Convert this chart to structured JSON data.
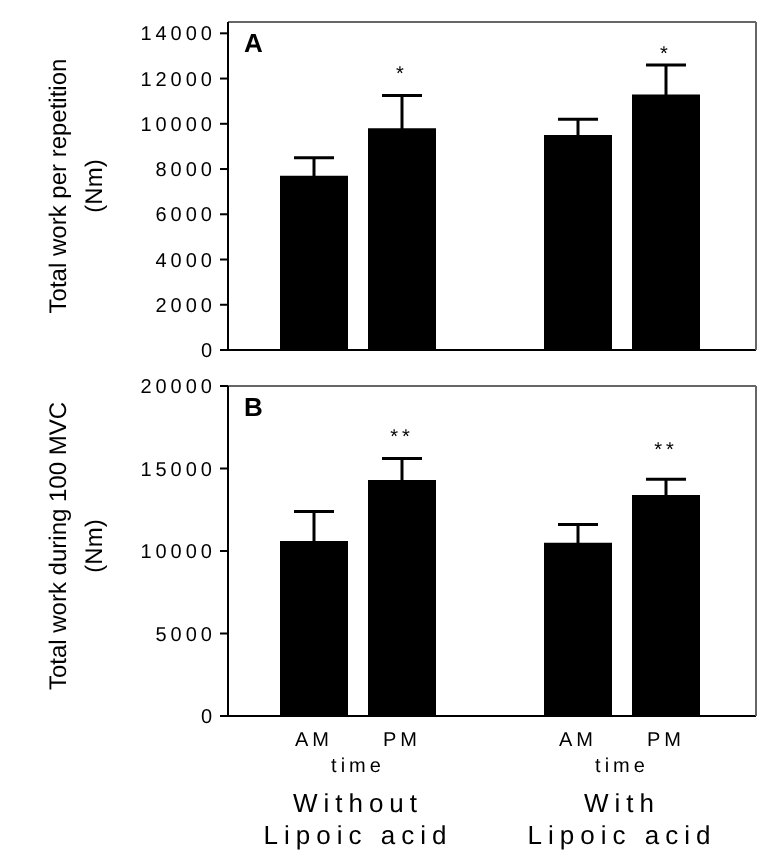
{
  "chart_data": [
    {
      "type": "bar",
      "title": "A",
      "ylabel": "Total work per repetition (Nm)",
      "categories": [
        null,
        null,
        null,
        null,
        null
      ],
      "values": [
        7700,
        9800,
        null,
        9500,
        11300
      ],
      "errors": [
        800,
        1450,
        null,
        700,
        1300
      ],
      "value_labels": [
        null,
        "*",
        null,
        null,
        "*"
      ],
      "color": "#000000",
      "ylim": [
        0,
        14500
      ],
      "yticks": [
        0,
        2000,
        4000,
        6000,
        8000,
        10000,
        12000,
        14000
      ],
      "tick_labels": "y"
    },
    {
      "type": "bar",
      "title": "B",
      "ylabel": "Total work during 100 MVC (Nm)",
      "categories": [
        "AM",
        "PM",
        null,
        "AM",
        "PM"
      ],
      "values": [
        10600,
        14300,
        null,
        10500,
        13400
      ],
      "errors": [
        1800,
        1300,
        null,
        1100,
        950
      ],
      "value_labels": [
        null,
        "**",
        null,
        null,
        "**"
      ],
      "color": "#000000",
      "ylim": [
        0,
        20000
      ],
      "yticks": [
        0,
        5000,
        10000,
        15000,
        20000
      ],
      "annotations": [
        "time",
        "time",
        "Without\nLipoic acid",
        "With\nLipoic acid"
      ]
    }
  ]
}
